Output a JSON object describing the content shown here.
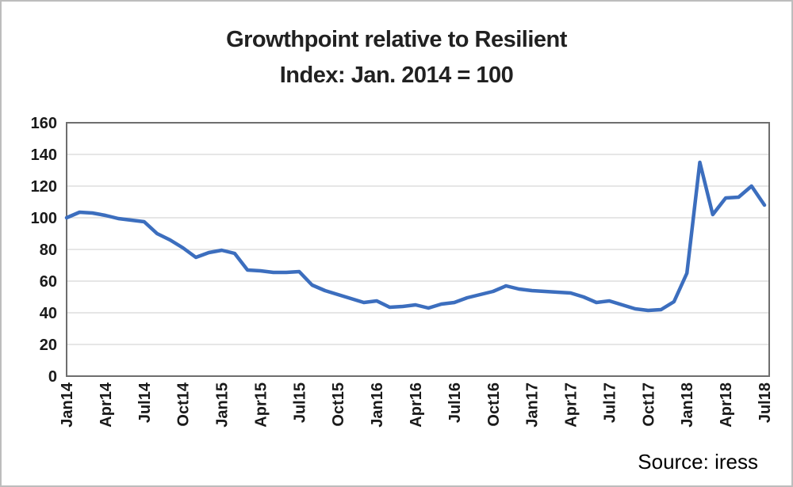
{
  "title": {
    "line1": "Growthpoint relative to Resilient",
    "line2": "Index: Jan. 2014 = 100"
  },
  "source": {
    "label": "Source: iress"
  },
  "chart_data": {
    "type": "line",
    "title": "Growthpoint relative to Resilient — Index: Jan. 2014 = 100",
    "xlabel": "",
    "ylabel": "",
    "ylim": [
      0,
      160
    ],
    "ytick_step": 20,
    "grid": true,
    "legend": false,
    "x": [
      "Jan14",
      "Feb14",
      "Mar14",
      "Apr14",
      "May14",
      "Jun14",
      "Jul14",
      "Aug14",
      "Sep14",
      "Oct14",
      "Nov14",
      "Dec14",
      "Jan15",
      "Feb15",
      "Mar15",
      "Apr15",
      "May15",
      "Jun15",
      "Jul15",
      "Aug15",
      "Sep15",
      "Oct15",
      "Nov15",
      "Dec15",
      "Jan16",
      "Feb16",
      "Mar16",
      "Apr16",
      "May16",
      "Jun16",
      "Jul16",
      "Aug16",
      "Sep16",
      "Oct16",
      "Nov16",
      "Dec16",
      "Jan17",
      "Feb17",
      "Mar17",
      "Apr17",
      "May17",
      "Jun17",
      "Jul17",
      "Aug17",
      "Sep17",
      "Oct17",
      "Nov17",
      "Dec17",
      "Jan18",
      "Feb18",
      "Mar18",
      "Apr18",
      "May18",
      "Jun18",
      "Jul18"
    ],
    "x_tick_labels": [
      "Jan14",
      "Apr14",
      "Jul14",
      "Oct14",
      "Jan15",
      "Apr15",
      "Jul15",
      "Oct15",
      "Jan16",
      "Apr16",
      "Jul16",
      "Oct16",
      "Jan17",
      "Apr17",
      "Jul17",
      "Oct17",
      "Jan18",
      "Apr18",
      "Jul18"
    ],
    "x_tick_every": 3,
    "series": [
      {
        "name": "Growthpoint relative to Resilient (Index Jan 2014 = 100)",
        "values": [
          100,
          103.5,
          103,
          101.5,
          99.5,
          98.5,
          97.5,
          90,
          86,
          81,
          75,
          78,
          79.5,
          77.5,
          67,
          66.5,
          65.5,
          65.5,
          66,
          57.5,
          54,
          51.5,
          49,
          46.5,
          47.5,
          43.5,
          44,
          45,
          43,
          45.5,
          46.5,
          49.5,
          51.5,
          53.5,
          57,
          55,
          54,
          53.5,
          53,
          52.5,
          50,
          46.5,
          47.5,
          45,
          42.5,
          41.5,
          42,
          47,
          65,
          135,
          102,
          112.5,
          113,
          120,
          108
        ]
      }
    ],
    "colors": {
      "line": "#3C6EBE",
      "grid": "#D6D6D6",
      "frame": "#6E6E6E",
      "label": "#1A1A1A"
    }
  }
}
